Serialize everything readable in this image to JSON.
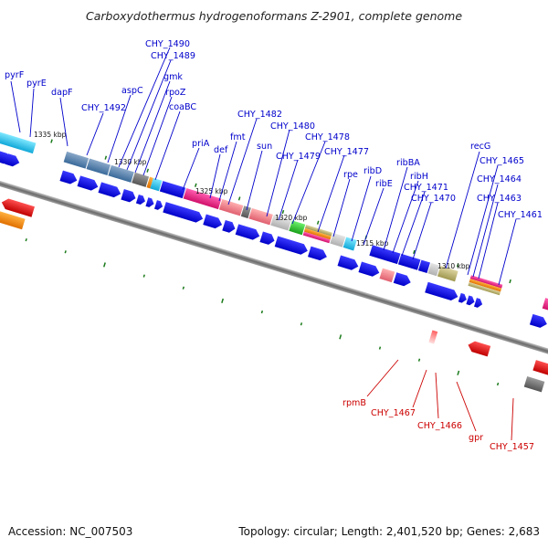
{
  "title": "Carboxydothermus hydrogenoformans Z-2901, complete genome",
  "footer": {
    "accession": "Accession: NC_007503",
    "summary": "Topology: circular; Length: 2,401,520 bp; Genes: 2,683"
  },
  "colors": {
    "forward_label": "#0000cc",
    "reverse_label": "#cc0000",
    "backbone": "#666666",
    "tick": "#1a7a1a"
  },
  "ticks": [
    "1335 kbp",
    "1330 kbp",
    "1325 kbp",
    "1320 kbp",
    "1315 kbp",
    "1310 kbp"
  ],
  "forward_labels": [
    "pyrF",
    "pyrE",
    "dapF",
    "CHY_1492",
    "aspC",
    "CHY_1490",
    "CHY_1489",
    "gmk",
    "rpoZ",
    "coaBC",
    "priA",
    "def",
    "fmt",
    "CHY_1482",
    "sun",
    "CHY_1480",
    "CHY_1479",
    "CHY_1478",
    "CHY_1477",
    "rpe",
    "ribD",
    "ribE",
    "ribBA",
    "ribH",
    "CHY_1471",
    "CHY_1470",
    "recG",
    "CHY_1465",
    "CHY_1464",
    "CHY_1463",
    "CHY_1461"
  ],
  "reverse_labels": [
    "rpmB",
    "CHY_1467",
    "CHY_1466",
    "gpr",
    "CHY_1457"
  ]
}
